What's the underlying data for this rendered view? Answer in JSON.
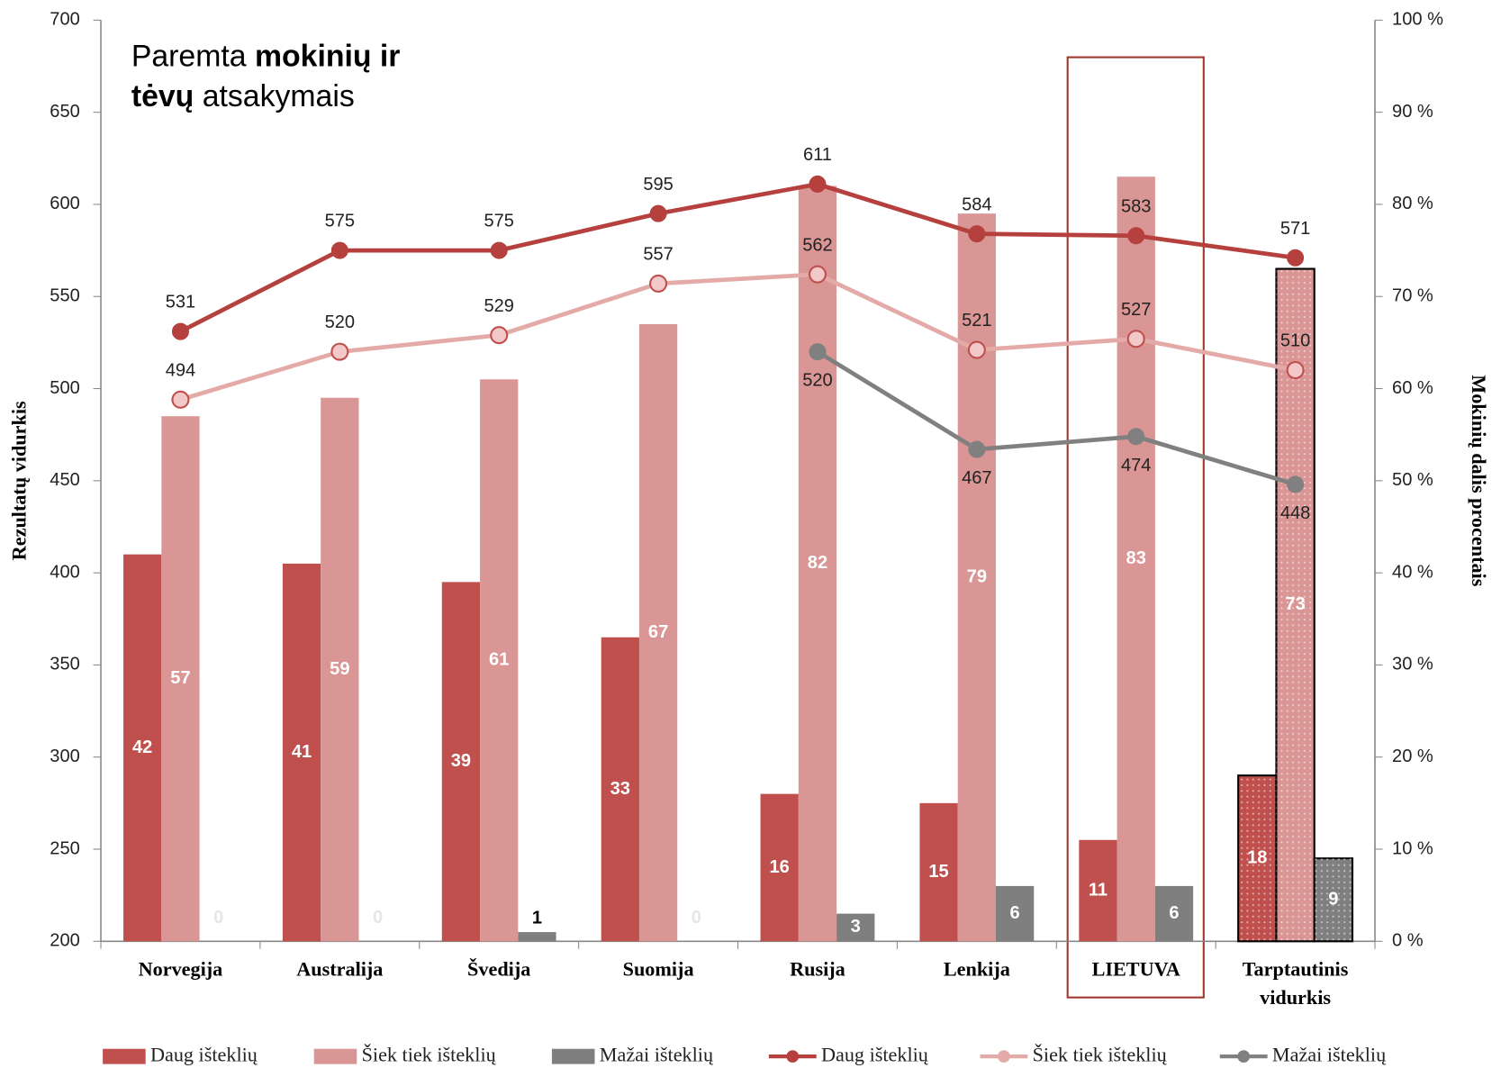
{
  "chart_data": {
    "type": "bar",
    "annotation": [
      [
        {
          "text": "Paremta ",
          "bold": false
        },
        {
          "text": "mokinių ir",
          "bold": true
        }
      ],
      [
        {
          "text": "tėvų",
          "bold": true
        },
        {
          "text": " atsakymais",
          "bold": false
        }
      ]
    ],
    "y_label": "Rezultatų vidurkis",
    "y2_label": "Mokinių dalis procentais",
    "categories": [
      "Norvegija",
      "Australija",
      "Švedija",
      "Suomija",
      "Rusija",
      "Lenkija",
      "LIETUVA",
      "Tarptautinis vidurkis"
    ],
    "ylim": [
      200,
      700
    ],
    "yticks": [
      200,
      250,
      300,
      350,
      400,
      450,
      500,
      550,
      600,
      650,
      700
    ],
    "y2lim": [
      0,
      100
    ],
    "y2ticks": [
      {
        "value": 0,
        "label": "0 %"
      },
      {
        "value": 10,
        "label": "10 %"
      },
      {
        "value": 20,
        "label": "20 %"
      },
      {
        "value": 30,
        "label": "30 %"
      },
      {
        "value": 40,
        "label": "40 %"
      },
      {
        "value": 50,
        "label": "50 %"
      },
      {
        "value": 60,
        "label": "60 %"
      },
      {
        "value": 70,
        "label": "70 %"
      },
      {
        "value": 80,
        "label": "80 %"
      },
      {
        "value": 90,
        "label": "90 %"
      },
      {
        "value": 100,
        "label": "100 %"
      }
    ],
    "series": [
      {
        "name": "Daug išteklių",
        "type": "bar",
        "axis": "y2",
        "color": "#c0504d",
        "values": [
          42,
          41,
          39,
          33,
          16,
          15,
          11,
          18
        ]
      },
      {
        "name": "Šiek tiek išteklių",
        "type": "bar",
        "axis": "y2",
        "color": "#d99694",
        "values": [
          57,
          59,
          61,
          67,
          82,
          79,
          83,
          73
        ]
      },
      {
        "name": "Mažai išteklių",
        "type": "bar",
        "axis": "y2",
        "color": "#7f7f7f",
        "values": [
          0,
          0,
          1,
          0,
          3,
          6,
          6,
          9
        ]
      },
      {
        "name": "Daug išteklių",
        "type": "line",
        "axis": "y",
        "color": "#b5403d",
        "values": [
          531,
          575,
          575,
          595,
          611,
          584,
          583,
          571
        ]
      },
      {
        "name": "Šiek tiek išteklių",
        "type": "line",
        "axis": "y",
        "color": "#e3aaa8",
        "values": [
          494,
          520,
          529,
          557,
          562,
          521,
          527,
          510
        ]
      },
      {
        "name": "Mažai išteklių",
        "type": "line",
        "axis": "y",
        "color": "#808080",
        "values": [
          null,
          null,
          null,
          null,
          520,
          467,
          474,
          448
        ]
      }
    ]
  }
}
